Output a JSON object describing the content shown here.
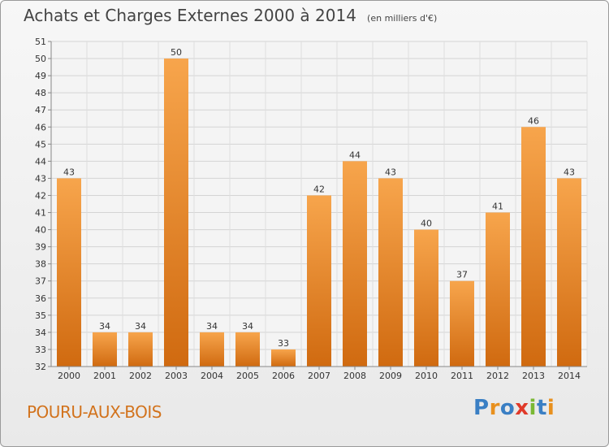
{
  "header": {
    "title": "Achats et Charges Externes 2000 à 2014",
    "subtitle": "(en milliers d'€)"
  },
  "commune": "POURU-AUX-BOIS",
  "logo": {
    "letters": [
      "P",
      "r",
      "o",
      "x",
      "i",
      "t",
      "i"
    ],
    "colors": [
      "#3a7fc4",
      "#e8901e",
      "#3a7fc4",
      "#e03a2a",
      "#7ab834",
      "#3a7fc4",
      "#e8901e"
    ]
  },
  "chart_data": {
    "type": "bar",
    "title": "Achats et Charges Externes 2000 à 2014",
    "subtitle": "(en milliers d'€)",
    "xlabel": "",
    "ylabel": "",
    "categories": [
      "2000",
      "2001",
      "2002",
      "2003",
      "2004",
      "2005",
      "2006",
      "2007",
      "2008",
      "2009",
      "2010",
      "2011",
      "2012",
      "2013",
      "2014"
    ],
    "values": [
      43,
      34,
      34,
      50,
      34,
      34,
      33,
      42,
      44,
      43,
      40,
      37,
      41,
      46,
      43
    ],
    "ylim": [
      32,
      51
    ],
    "yticks": [
      32,
      33,
      34,
      35,
      36,
      37,
      38,
      39,
      40,
      41,
      42,
      43,
      44,
      45,
      46,
      47,
      48,
      49,
      50,
      51
    ],
    "grid": true,
    "bar_color": "#f0902c"
  }
}
